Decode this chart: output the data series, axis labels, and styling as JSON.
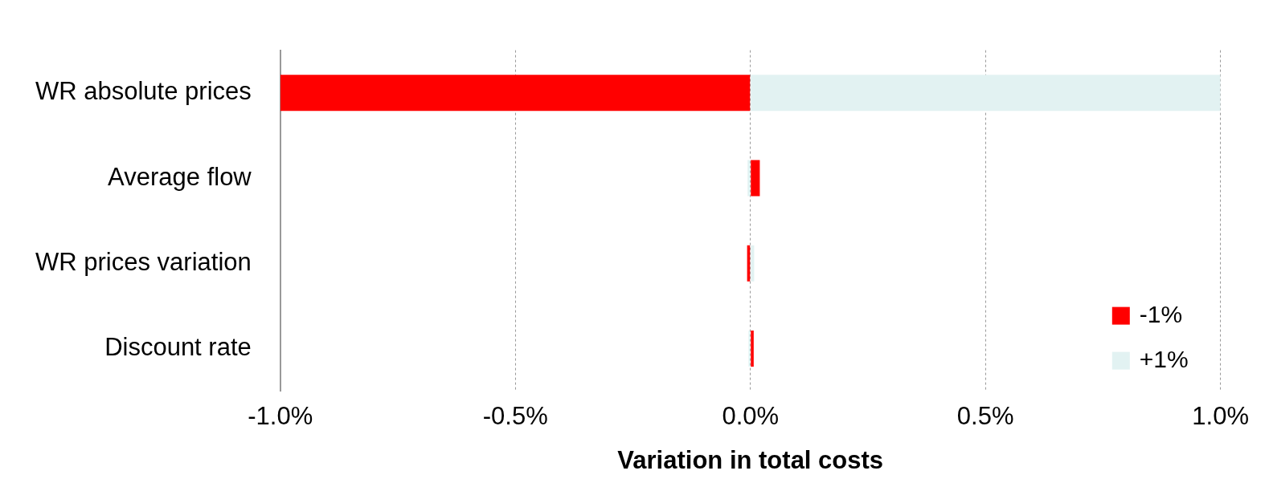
{
  "chart_data": {
    "type": "bar",
    "orientation": "horizontal",
    "xlabel": "Variation in total costs",
    "categories": [
      "WR absolute prices",
      "Average flow",
      "WR prices variation",
      "Discount rate"
    ],
    "series": [
      {
        "name": "-1%",
        "color": "#ff0000",
        "values": [
          -1.0,
          0.02,
          -0.007,
          0.007
        ]
      },
      {
        "name": "+1%",
        "color": "#e2f2f2",
        "values": [
          1.0,
          -0.006,
          0.008,
          -0.004
        ]
      }
    ],
    "xlim": [
      -1.0,
      1.0
    ],
    "xticks": [
      {
        "value": -1.0,
        "label": "-1.0%"
      },
      {
        "value": -0.5,
        "label": "-0.5%"
      },
      {
        "value": 0,
        "label": "0.0%"
      },
      {
        "value": 0.5,
        "label": "0.5%"
      },
      {
        "value": 1.0,
        "label": "1.0%"
      }
    ],
    "grid": "x",
    "legend": "bottom right",
    "stacked": true
  }
}
